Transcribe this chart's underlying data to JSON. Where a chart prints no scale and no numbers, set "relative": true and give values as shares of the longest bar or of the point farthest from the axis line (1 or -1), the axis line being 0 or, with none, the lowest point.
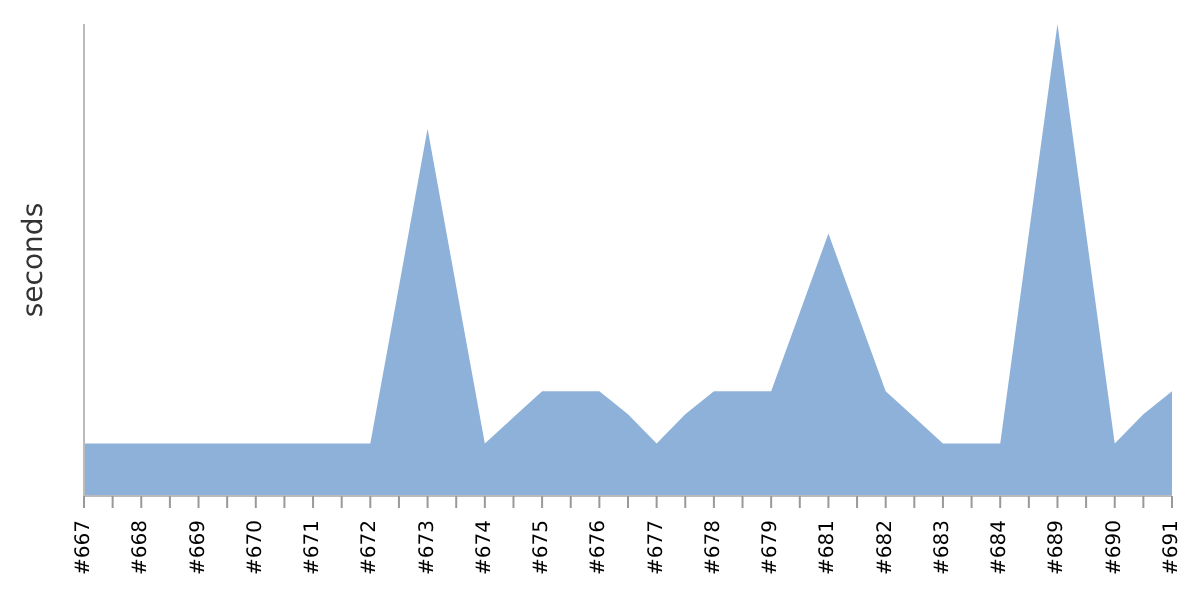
{
  "chart_data": {
    "type": "area",
    "ylabel": "seconds",
    "relative": true,
    "grid": false,
    "legend": false,
    "categories": [
      "#667",
      null,
      "#668",
      null,
      "#669",
      null,
      "#670",
      null,
      "#671",
      null,
      "#672",
      null,
      "#673",
      null,
      "#674",
      null,
      "#675",
      null,
      "#676",
      null,
      "#677",
      null,
      "#678",
      null,
      "#679",
      null,
      "#681",
      null,
      "#682",
      null,
      "#683",
      null,
      "#684",
      null,
      "#689",
      null,
      "#690",
      null,
      "#691"
    ],
    "series": [
      {
        "color": "#8eb1da",
        "values": [
          0.111,
          0.111,
          0.111,
          0.111,
          0.111,
          0.111,
          0.111,
          0.111,
          0.111,
          0.111,
          0.111,
          0.444,
          0.778,
          0.444,
          0.111,
          0.167,
          0.222,
          0.222,
          0.222,
          0.173,
          0.111,
          0.173,
          0.222,
          0.222,
          0.222,
          0.389,
          0.556,
          0.389,
          0.222,
          0.167,
          0.111,
          0.111,
          0.111,
          0.556,
          1,
          0.556,
          0.111,
          0.173,
          0.222
        ]
      }
    ]
  }
}
